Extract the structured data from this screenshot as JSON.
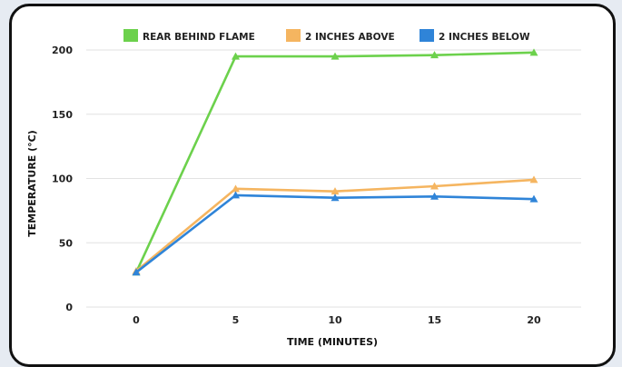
{
  "chart_data": {
    "type": "line",
    "xlabel": "TIME (MINUTES)",
    "ylabel": "TEMPERATURE (°C)",
    "x": [
      0,
      5,
      10,
      15,
      20
    ],
    "x_ticks": [
      "0",
      "5",
      "10",
      "15",
      "20"
    ],
    "y_ticks": [
      "0",
      "50",
      "100",
      "150",
      "200"
    ],
    "ylim": [
      0,
      200
    ],
    "xlim": [
      0,
      20
    ],
    "grid": true,
    "legend_position": "top",
    "series": [
      {
        "name": "REAR BEHIND FLAME",
        "color": "#6cd14c",
        "values": [
          27,
          195,
          195,
          196,
          198
        ]
      },
      {
        "name": "2 INCHES ABOVE",
        "color": "#f5b560",
        "values": [
          28,
          92,
          90,
          94,
          99
        ]
      },
      {
        "name": "2 INCHES BELOW",
        "color": "#2f84d8",
        "values": [
          27,
          87,
          85,
          86,
          84
        ]
      }
    ]
  }
}
